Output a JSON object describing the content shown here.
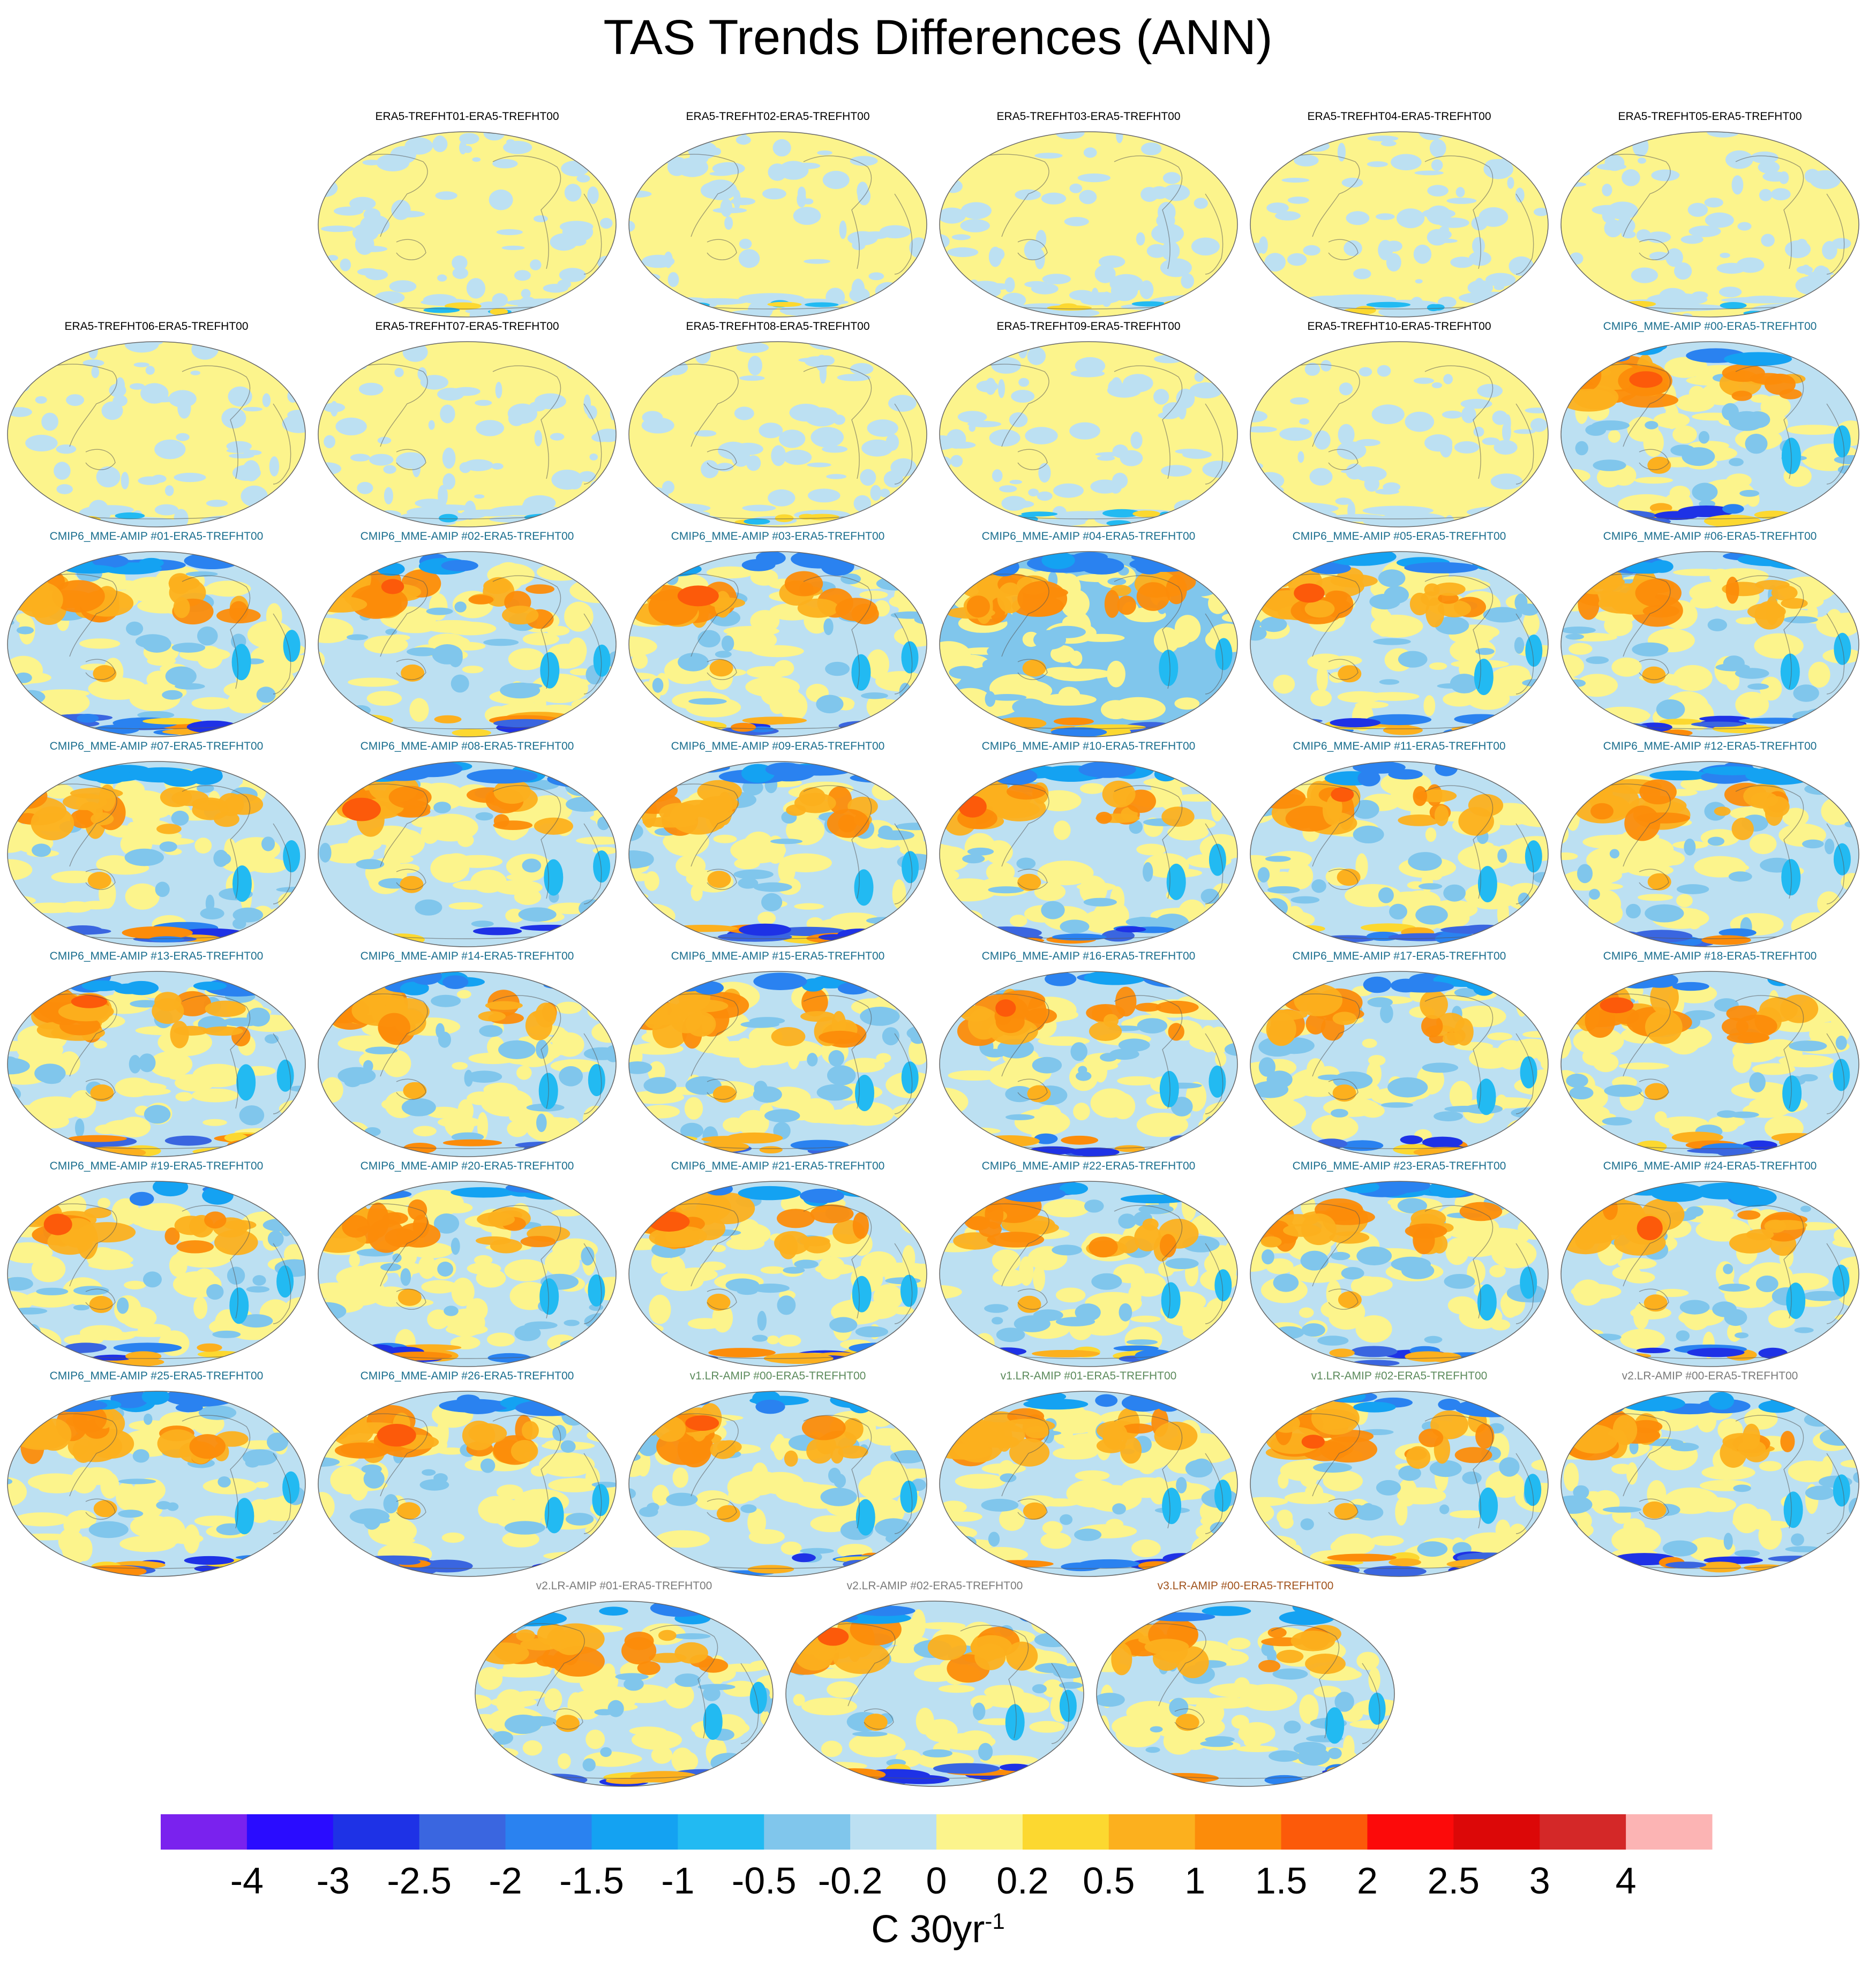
{
  "title": "TAS Trends Differences (ANN)",
  "chart_data": {
    "type": "heatmap",
    "title": "TAS Trends Differences (ANN)",
    "projection": "global map, Pacific-centered ellipse",
    "panels": [
      {
        "label": "ERA5-TREFHT01-ERA5-TREFHT00",
        "group": "ERA5",
        "title_color": "#000000"
      },
      {
        "label": "ERA5-TREFHT02-ERA5-TREFHT00",
        "group": "ERA5",
        "title_color": "#000000"
      },
      {
        "label": "ERA5-TREFHT03-ERA5-TREFHT00",
        "group": "ERA5",
        "title_color": "#000000"
      },
      {
        "label": "ERA5-TREFHT04-ERA5-TREFHT00",
        "group": "ERA5",
        "title_color": "#000000"
      },
      {
        "label": "ERA5-TREFHT05-ERA5-TREFHT00",
        "group": "ERA5",
        "title_color": "#000000"
      },
      {
        "label": "ERA5-TREFHT06-ERA5-TREFHT00",
        "group": "ERA5",
        "title_color": "#000000"
      },
      {
        "label": "ERA5-TREFHT07-ERA5-TREFHT00",
        "group": "ERA5",
        "title_color": "#000000"
      },
      {
        "label": "ERA5-TREFHT08-ERA5-TREFHT00",
        "group": "ERA5",
        "title_color": "#000000"
      },
      {
        "label": "ERA5-TREFHT09-ERA5-TREFHT00",
        "group": "ERA5",
        "title_color": "#000000"
      },
      {
        "label": "ERA5-TREFHT10-ERA5-TREFHT00",
        "group": "ERA5",
        "title_color": "#000000"
      },
      {
        "label": "CMIP6_MME-AMIP  #00-ERA5-TREFHT00",
        "group": "CMIP6",
        "title_color": "#1a6e8e"
      },
      {
        "label": "CMIP6_MME-AMIP  #01-ERA5-TREFHT00",
        "group": "CMIP6",
        "title_color": "#1a6e8e"
      },
      {
        "label": "CMIP6_MME-AMIP  #02-ERA5-TREFHT00",
        "group": "CMIP6",
        "title_color": "#1a6e8e"
      },
      {
        "label": "CMIP6_MME-AMIP  #03-ERA5-TREFHT00",
        "group": "CMIP6",
        "title_color": "#1a6e8e"
      },
      {
        "label": "CMIP6_MME-AMIP  #04-ERA5-TREFHT00",
        "group": "CMIP6",
        "title_color": "#1a6e8e"
      },
      {
        "label": "CMIP6_MME-AMIP  #05-ERA5-TREFHT00",
        "group": "CMIP6",
        "title_color": "#1a6e8e"
      },
      {
        "label": "CMIP6_MME-AMIP  #06-ERA5-TREFHT00",
        "group": "CMIP6",
        "title_color": "#1a6e8e"
      },
      {
        "label": "CMIP6_MME-AMIP  #07-ERA5-TREFHT00",
        "group": "CMIP6",
        "title_color": "#1a6e8e"
      },
      {
        "label": "CMIP6_MME-AMIP  #08-ERA5-TREFHT00",
        "group": "CMIP6",
        "title_color": "#1a6e8e"
      },
      {
        "label": "CMIP6_MME-AMIP  #09-ERA5-TREFHT00",
        "group": "CMIP6",
        "title_color": "#1a6e8e"
      },
      {
        "label": "CMIP6_MME-AMIP  #10-ERA5-TREFHT00",
        "group": "CMIP6",
        "title_color": "#1a6e8e"
      },
      {
        "label": "CMIP6_MME-AMIP  #11-ERA5-TREFHT00",
        "group": "CMIP6",
        "title_color": "#1a6e8e"
      },
      {
        "label": "CMIP6_MME-AMIP  #12-ERA5-TREFHT00",
        "group": "CMIP6",
        "title_color": "#1a6e8e"
      },
      {
        "label": "CMIP6_MME-AMIP  #13-ERA5-TREFHT00",
        "group": "CMIP6",
        "title_color": "#1a6e8e"
      },
      {
        "label": "CMIP6_MME-AMIP  #14-ERA5-TREFHT00",
        "group": "CMIP6",
        "title_color": "#1a6e8e"
      },
      {
        "label": "CMIP6_MME-AMIP  #15-ERA5-TREFHT00",
        "group": "CMIP6",
        "title_color": "#1a6e8e"
      },
      {
        "label": "CMIP6_MME-AMIP  #16-ERA5-TREFHT00",
        "group": "CMIP6",
        "title_color": "#1a6e8e"
      },
      {
        "label": "CMIP6_MME-AMIP  #17-ERA5-TREFHT00",
        "group": "CMIP6",
        "title_color": "#1a6e8e"
      },
      {
        "label": "CMIP6_MME-AMIP  #18-ERA5-TREFHT00",
        "group": "CMIP6",
        "title_color": "#1a6e8e"
      },
      {
        "label": "CMIP6_MME-AMIP  #19-ERA5-TREFHT00",
        "group": "CMIP6",
        "title_color": "#1a6e8e"
      },
      {
        "label": "CMIP6_MME-AMIP  #20-ERA5-TREFHT00",
        "group": "CMIP6",
        "title_color": "#1a6e8e"
      },
      {
        "label": "CMIP6_MME-AMIP  #21-ERA5-TREFHT00",
        "group": "CMIP6",
        "title_color": "#1a6e8e"
      },
      {
        "label": "CMIP6_MME-AMIP  #22-ERA5-TREFHT00",
        "group": "CMIP6",
        "title_color": "#1a6e8e"
      },
      {
        "label": "CMIP6_MME-AMIP  #23-ERA5-TREFHT00",
        "group": "CMIP6",
        "title_color": "#1a6e8e"
      },
      {
        "label": "CMIP6_MME-AMIP  #24-ERA5-TREFHT00",
        "group": "CMIP6",
        "title_color": "#1a6e8e"
      },
      {
        "label": "CMIP6_MME-AMIP  #25-ERA5-TREFHT00",
        "group": "CMIP6",
        "title_color": "#1a6e8e"
      },
      {
        "label": "CMIP6_MME-AMIP  #26-ERA5-TREFHT00",
        "group": "CMIP6",
        "title_color": "#1a6e8e"
      },
      {
        "label": "v1.LR-AMIP  #00-ERA5-TREFHT00",
        "group": "v1",
        "title_color": "#5b8a5b"
      },
      {
        "label": "v1.LR-AMIP  #01-ERA5-TREFHT00",
        "group": "v1",
        "title_color": "#5b8a5b"
      },
      {
        "label": "v1.LR-AMIP  #02-ERA5-TREFHT00",
        "group": "v1",
        "title_color": "#5b8a5b"
      },
      {
        "label": "v2.LR-AMIP  #00-ERA5-TREFHT00",
        "group": "v2",
        "title_color": "#7a7a7a"
      },
      {
        "label": "v2.LR-AMIP  #01-ERA5-TREFHT00",
        "group": "v2",
        "title_color": "#7a7a7a"
      },
      {
        "label": "v2.LR-AMIP  #02-ERA5-TREFHT00",
        "group": "v2",
        "title_color": "#7a7a7a"
      },
      {
        "label": "v3.LR-AMIP  #00-ERA5-TREFHT00",
        "group": "v3",
        "title_color": "#a0521c"
      }
    ],
    "colorbar": {
      "levels": [
        "-4",
        "-3",
        "-2.5",
        "-2",
        "-1.5",
        "-1",
        "-0.5",
        "-0.2",
        "0",
        "0.2",
        "0.5",
        "1",
        "1.5",
        "2",
        "2.5",
        "3",
        "4"
      ],
      "colors": [
        "#7a22ee",
        "#2a0cff",
        "#1e32e6",
        "#3a66e0",
        "#2a82f0",
        "#14a2f2",
        "#22baf2",
        "#80c6ec",
        "#bce0f2",
        "#fcf48c",
        "#fcd830",
        "#fcb01e",
        "#fc8c0a",
        "#fc5a0a",
        "#fc0a0a",
        "#dc0808",
        "#d42828",
        "#fcb4b4"
      ],
      "units": "C 30yr",
      "units_exponent": "-1"
    }
  }
}
